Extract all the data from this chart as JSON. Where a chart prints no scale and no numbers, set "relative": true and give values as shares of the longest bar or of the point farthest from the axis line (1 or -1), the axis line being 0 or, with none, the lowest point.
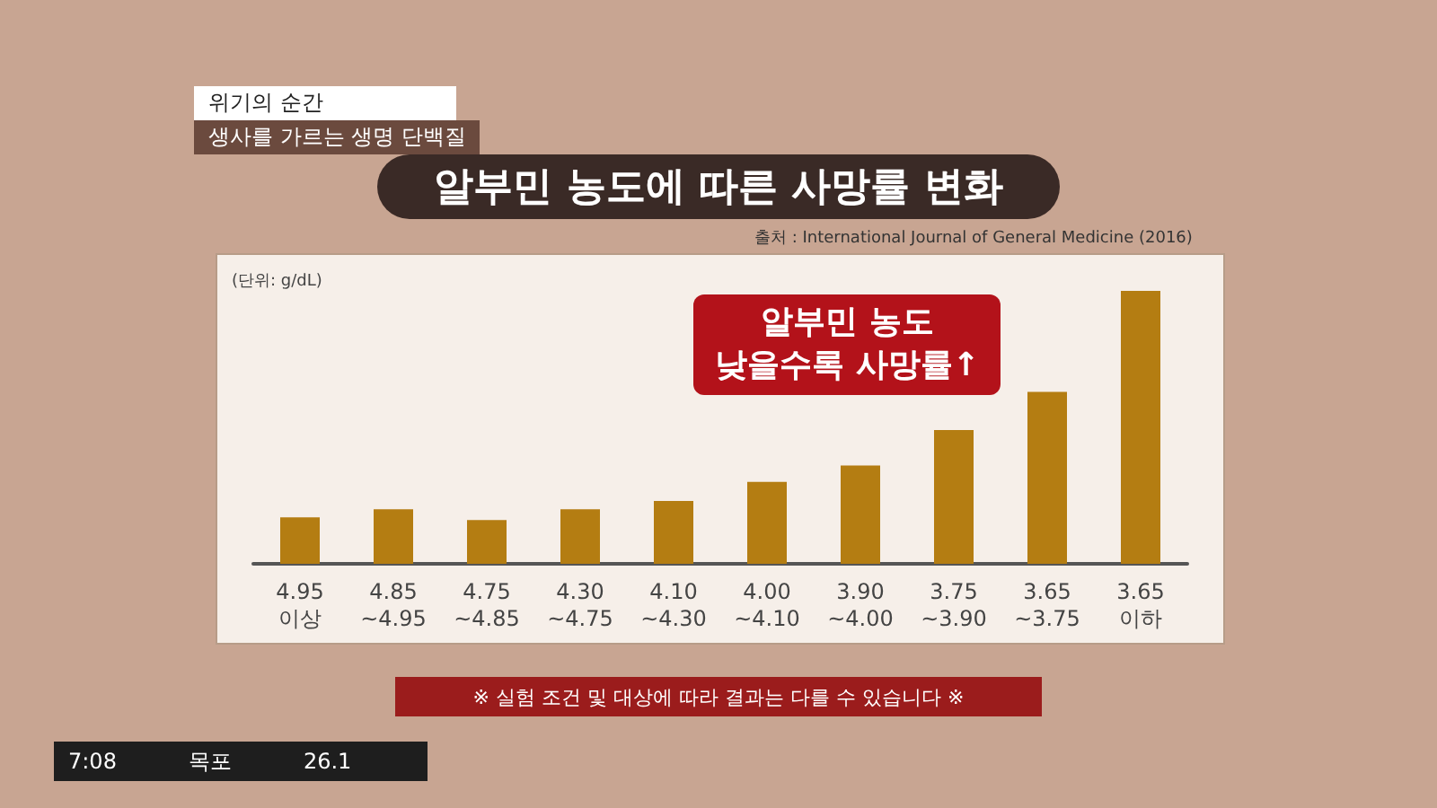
{
  "chart_data": {
    "type": "bar",
    "title": "알부민 농도에 따른 사망률 변화",
    "relative": true,
    "color": "#b47d12",
    "categories": [
      "4.95\n이상",
      "4.85\n~4.95",
      "4.75\n~4.85",
      "4.30\n~4.75",
      "4.10\n~4.30",
      "4.00\n~4.10",
      "3.90\n~4.00",
      "3.75\n~3.90",
      "3.65\n~3.75",
      "3.65\n이하"
    ],
    "values": [
      0.17,
      0.2,
      0.16,
      0.2,
      0.23,
      0.3,
      0.36,
      0.49,
      0.63,
      1
    ],
    "annotations": [
      "위기의 순간",
      "생사를 가르는 생명 단백질",
      "출처 : International Journal of General Medicine (2016)",
      "(단위: g/dL)",
      "알부민 농도\n낮을수록 사망률↑",
      "※ 실험 조건 및 대상에 따라 결과는 다를 수 있습니다 ※",
      "7:08",
      "목포",
      "26.1"
    ]
  }
}
